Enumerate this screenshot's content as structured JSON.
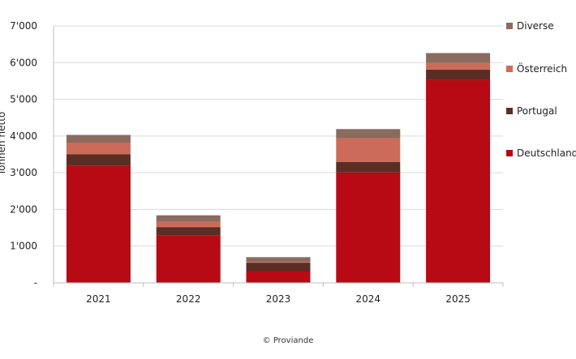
{
  "chart_data": {
    "type": "bar",
    "stacked": true,
    "categories": [
      "2021",
      "2022",
      "2023",
      "2024",
      "2025"
    ],
    "series": [
      {
        "name": "Deutschland",
        "color": "#b70a15",
        "values": [
          3200,
          1300,
          320,
          3010,
          5530
        ]
      },
      {
        "name": "Portugal",
        "color": "#5a2e24",
        "values": [
          300,
          220,
          230,
          280,
          280
        ]
      },
      {
        "name": "Österreich",
        "color": "#cc6b5a",
        "values": [
          320,
          140,
          20,
          650,
          180
        ]
      },
      {
        "name": "Diverse",
        "color": "#8a6b5e",
        "values": [
          210,
          180,
          130,
          250,
          270
        ]
      }
    ],
    "ylim": [
      0,
      7000
    ],
    "yticks": [
      {
        "value": 0,
        "label": "-"
      },
      {
        "value": 1000,
        "label": "1'000"
      },
      {
        "value": 2000,
        "label": "2'000"
      },
      {
        "value": 3000,
        "label": "3'000"
      },
      {
        "value": 4000,
        "label": "4'000"
      },
      {
        "value": 5000,
        "label": "5'000"
      },
      {
        "value": 6000,
        "label": "6'000"
      },
      {
        "value": 7000,
        "label": "7'000"
      }
    ],
    "ylabel": "Tonnen netto",
    "xlabel": "",
    "grid": true,
    "legend_position": "right",
    "legend_order": [
      "Diverse",
      "Österreich",
      "Portugal",
      "Deutschland"
    ]
  },
  "credit": "© Proviande"
}
